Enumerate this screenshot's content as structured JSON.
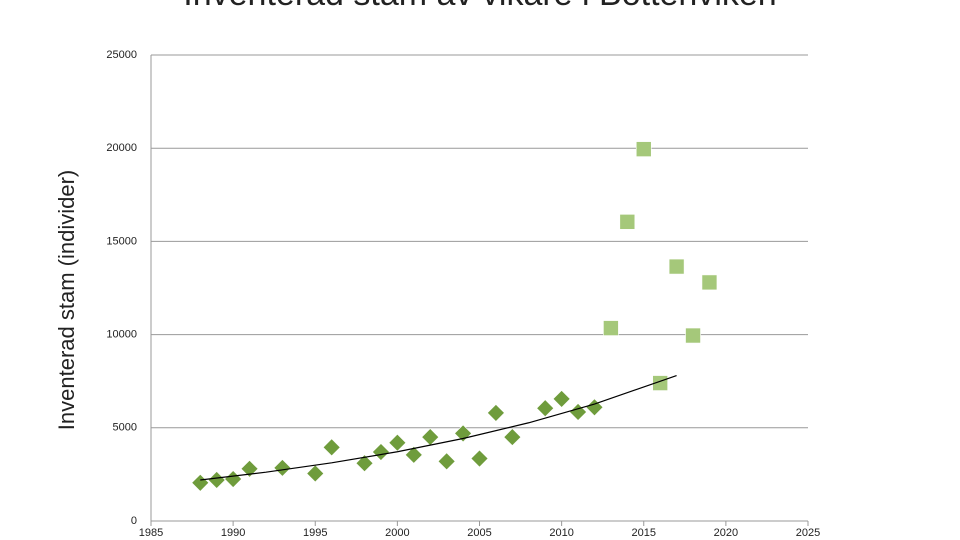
{
  "chart_data": {
    "type": "scatter",
    "title": "Inventerad stam av vikare i Bottenviken",
    "y_label": "Inventerad stam (individer)",
    "xlim": [
      1985,
      2025
    ],
    "xticks": [
      1985,
      1990,
      1995,
      2000,
      2005,
      2010,
      2015,
      2020,
      2025
    ],
    "ylim": [
      0,
      25000
    ],
    "yticks": [
      0,
      5000,
      10000,
      15000,
      20000,
      25000
    ],
    "grid": true,
    "series": [
      {
        "marker": "diamond",
        "color": "#6f9c3c",
        "x": [
          1988,
          1989,
          1990,
          1991,
          1993,
          1995,
          1996,
          1998,
          1999,
          2000,
          2001,
          2002,
          2003,
          2004,
          2005,
          2006,
          2007,
          2009,
          2010,
          2011,
          2012
        ],
        "values": [
          2050,
          2200,
          2250,
          2800,
          2850,
          2550,
          3950,
          3100,
          3700,
          4200,
          3550,
          4500,
          3200,
          4700,
          3350,
          5800,
          4500,
          6050,
          6550,
          5850,
          6100
        ]
      },
      {
        "marker": "square",
        "color": "#a5c87a",
        "x": [
          2013,
          2014,
          2015,
          2016,
          2017,
          2018,
          2019
        ],
        "values": [
          10350,
          16050,
          19950,
          7400,
          13650,
          9950,
          12800
        ]
      }
    ],
    "trendline": {
      "color": "#000000",
      "x": [
        1988,
        1992,
        1996,
        2000,
        2004,
        2008,
        2012,
        2017
      ],
      "values": [
        2200,
        2620,
        3120,
        3716,
        4425,
        5270,
        6276,
        7800
      ]
    }
  }
}
